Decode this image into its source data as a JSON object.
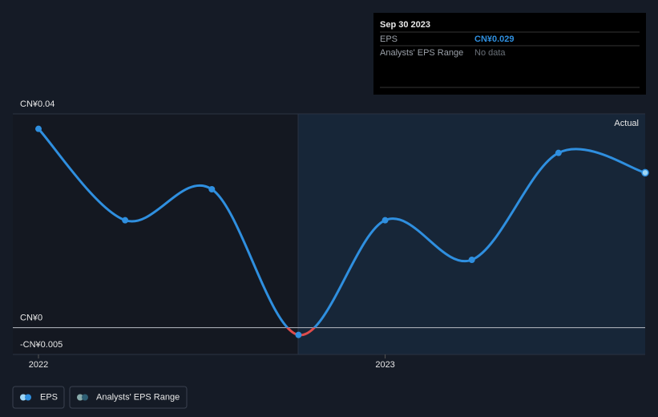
{
  "chart_data": {
    "type": "line",
    "categories": [
      "2022",
      null,
      null,
      null,
      "2023",
      null,
      null,
      null
    ],
    "series": [
      {
        "name": "EPS",
        "color": "#2f8fdf",
        "values": [
          0.0372,
          0.0201,
          0.0259,
          -0.00135,
          0.0201,
          0.0127,
          0.0327,
          0.029
        ]
      },
      {
        "name": "Analysts' EPS Range",
        "color": "#2e5e73",
        "values": [
          null,
          null,
          null,
          null,
          null,
          null,
          null,
          null
        ]
      }
    ],
    "negative_color": "#e04c4c",
    "ylim": [
      -0.005,
      0.04
    ],
    "yticks": [
      {
        "value": 0.04,
        "label": "CN¥0.04"
      },
      {
        "value": 0,
        "label": "CN¥0"
      },
      {
        "value": -0.005,
        "label": "-CN¥0.005"
      }
    ],
    "actual_label": "Actual"
  },
  "tooltip": {
    "title": "Sep 30 2023",
    "rows": [
      [
        "EPS",
        "CN¥0.029"
      ],
      [
        "Analysts' EPS Range",
        "No data"
      ]
    ]
  }
}
